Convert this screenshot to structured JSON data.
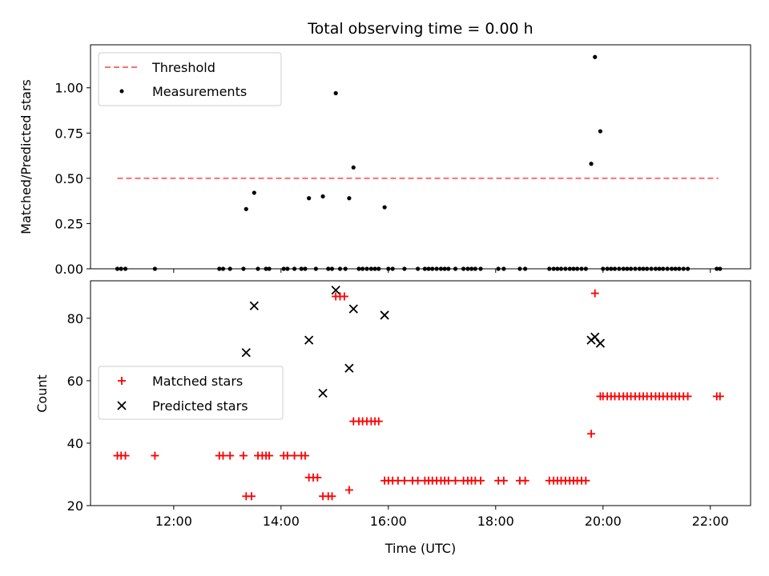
{
  "chart_data": [
    {
      "type": "scatter",
      "title": "Total observing time = 0.00 h",
      "ylabel": "Matched/Predicted stars",
      "ylim": [
        0,
        1.2375
      ],
      "yticks": [
        "0.00",
        "0.25",
        "0.50",
        "0.75",
        "1.00"
      ],
      "xlim": [
        10.45,
        22.75
      ],
      "legend": {
        "placement": "upper-left",
        "entries": [
          {
            "key": "threshold",
            "label": "Threshold"
          },
          {
            "key": "measurements",
            "label": "Measurements"
          }
        ]
      },
      "threshold": {
        "y": 0.5,
        "x_range": [
          10.95,
          22.15
        ],
        "color": "#ff7070"
      },
      "measurements": {
        "color": "#000000",
        "points": [
          [
            10.95,
            0
          ],
          [
            11.02,
            0
          ],
          [
            11.1,
            0
          ],
          [
            11.65,
            0
          ],
          [
            12.85,
            0
          ],
          [
            12.92,
            0
          ],
          [
            13.05,
            0
          ],
          [
            13.3,
            0
          ],
          [
            13.35,
            0.33
          ],
          [
            13.5,
            0.42
          ],
          [
            13.57,
            0
          ],
          [
            13.72,
            0
          ],
          [
            13.78,
            0
          ],
          [
            14.05,
            0
          ],
          [
            14.12,
            0
          ],
          [
            14.25,
            0
          ],
          [
            14.38,
            0
          ],
          [
            14.45,
            0
          ],
          [
            14.52,
            0.39
          ],
          [
            14.65,
            0
          ],
          [
            14.78,
            0.4
          ],
          [
            14.88,
            0
          ],
          [
            14.95,
            0
          ],
          [
            15.02,
            0.97
          ],
          [
            15.1,
            0
          ],
          [
            15.2,
            0
          ],
          [
            15.27,
            0.39
          ],
          [
            15.35,
            0.56
          ],
          [
            15.45,
            0
          ],
          [
            15.52,
            0
          ],
          [
            15.6,
            0
          ],
          [
            15.68,
            0
          ],
          [
            15.75,
            0
          ],
          [
            15.82,
            0
          ],
          [
            15.93,
            0.34
          ],
          [
            16.0,
            0
          ],
          [
            16.08,
            0
          ],
          [
            16.3,
            0
          ],
          [
            16.55,
            0
          ],
          [
            16.68,
            0
          ],
          [
            16.75,
            0
          ],
          [
            16.82,
            0
          ],
          [
            16.9,
            0
          ],
          [
            16.98,
            0
          ],
          [
            17.05,
            0
          ],
          [
            17.12,
            0
          ],
          [
            17.25,
            0
          ],
          [
            17.4,
            0
          ],
          [
            17.48,
            0
          ],
          [
            17.55,
            0
          ],
          [
            17.62,
            0
          ],
          [
            17.72,
            0
          ],
          [
            18.05,
            0
          ],
          [
            18.15,
            0
          ],
          [
            18.45,
            0
          ],
          [
            18.55,
            0
          ],
          [
            19.0,
            0
          ],
          [
            19.08,
            0
          ],
          [
            19.15,
            0
          ],
          [
            19.22,
            0
          ],
          [
            19.3,
            0
          ],
          [
            19.38,
            0
          ],
          [
            19.45,
            0
          ],
          [
            19.52,
            0
          ],
          [
            19.6,
            0
          ],
          [
            19.68,
            0
          ],
          [
            19.78,
            0.58
          ],
          [
            19.85,
            1.17
          ],
          [
            19.95,
            0.76
          ],
          [
            20.0,
            0
          ],
          [
            20.08,
            0
          ],
          [
            20.15,
            0
          ],
          [
            20.22,
            0
          ],
          [
            20.3,
            0
          ],
          [
            20.38,
            0
          ],
          [
            20.45,
            0
          ],
          [
            20.52,
            0
          ],
          [
            20.6,
            0
          ],
          [
            20.68,
            0
          ],
          [
            20.75,
            0
          ],
          [
            20.82,
            0
          ],
          [
            20.9,
            0
          ],
          [
            20.98,
            0
          ],
          [
            21.05,
            0
          ],
          [
            21.12,
            0
          ],
          [
            21.2,
            0
          ],
          [
            21.28,
            0
          ],
          [
            21.35,
            0
          ],
          [
            21.42,
            0
          ],
          [
            21.5,
            0
          ],
          [
            21.58,
            0
          ],
          [
            22.12,
            0
          ],
          [
            22.18,
            0
          ]
        ]
      }
    },
    {
      "type": "scatter",
      "ylabel": "Count",
      "xlabel": "Time (UTC)",
      "ylim": [
        20,
        92
      ],
      "yticks": [
        "20",
        "40",
        "60",
        "80"
      ],
      "xlim": [
        10.45,
        22.75
      ],
      "xticks": [
        {
          "value": 12,
          "label": "12:00"
        },
        {
          "value": 14,
          "label": "14:00"
        },
        {
          "value": 16,
          "label": "16:00"
        },
        {
          "value": 18,
          "label": "18:00"
        },
        {
          "value": 20,
          "label": "20:00"
        },
        {
          "value": 22,
          "label": "22:00"
        }
      ],
      "legend": {
        "placement": "center-left",
        "entries": [
          {
            "key": "matched",
            "label": "Matched stars"
          },
          {
            "key": "predicted",
            "label": "Predicted stars"
          }
        ]
      },
      "series": [
        {
          "key": "matched",
          "name": "Matched stars",
          "marker": "plus",
          "color": "#ff0000",
          "points": [
            [
              10.95,
              36
            ],
            [
              11.02,
              36
            ],
            [
              11.1,
              36
            ],
            [
              11.65,
              36
            ],
            [
              12.85,
              36
            ],
            [
              12.92,
              36
            ],
            [
              13.05,
              36
            ],
            [
              13.3,
              36
            ],
            [
              13.35,
              23
            ],
            [
              13.45,
              23
            ],
            [
              13.57,
              36
            ],
            [
              13.65,
              36
            ],
            [
              13.72,
              36
            ],
            [
              13.78,
              36
            ],
            [
              14.05,
              36
            ],
            [
              14.12,
              36
            ],
            [
              14.25,
              36
            ],
            [
              14.38,
              36
            ],
            [
              14.45,
              36
            ],
            [
              14.52,
              29
            ],
            [
              14.6,
              29
            ],
            [
              14.68,
              29
            ],
            [
              14.78,
              23
            ],
            [
              14.88,
              23
            ],
            [
              14.95,
              23
            ],
            [
              15.02,
              87
            ],
            [
              15.1,
              87
            ],
            [
              15.18,
              87
            ],
            [
              15.27,
              25
            ],
            [
              15.35,
              47
            ],
            [
              15.45,
              47
            ],
            [
              15.52,
              47
            ],
            [
              15.6,
              47
            ],
            [
              15.68,
              47
            ],
            [
              15.75,
              47
            ],
            [
              15.82,
              47
            ],
            [
              15.93,
              28
            ],
            [
              16.0,
              28
            ],
            [
              16.08,
              28
            ],
            [
              16.18,
              28
            ],
            [
              16.3,
              28
            ],
            [
              16.45,
              28
            ],
            [
              16.55,
              28
            ],
            [
              16.68,
              28
            ],
            [
              16.75,
              28
            ],
            [
              16.82,
              28
            ],
            [
              16.9,
              28
            ],
            [
              16.98,
              28
            ],
            [
              17.05,
              28
            ],
            [
              17.12,
              28
            ],
            [
              17.25,
              28
            ],
            [
              17.4,
              28
            ],
            [
              17.48,
              28
            ],
            [
              17.55,
              28
            ],
            [
              17.62,
              28
            ],
            [
              17.72,
              28
            ],
            [
              18.05,
              28
            ],
            [
              18.15,
              28
            ],
            [
              18.45,
              28
            ],
            [
              18.55,
              28
            ],
            [
              19.0,
              28
            ],
            [
              19.08,
              28
            ],
            [
              19.15,
              28
            ],
            [
              19.22,
              28
            ],
            [
              19.3,
              28
            ],
            [
              19.38,
              28
            ],
            [
              19.45,
              28
            ],
            [
              19.52,
              28
            ],
            [
              19.6,
              28
            ],
            [
              19.68,
              28
            ],
            [
              19.78,
              43
            ],
            [
              19.85,
              88
            ],
            [
              19.95,
              55
            ],
            [
              20.0,
              55
            ],
            [
              20.08,
              55
            ],
            [
              20.15,
              55
            ],
            [
              20.22,
              55
            ],
            [
              20.3,
              55
            ],
            [
              20.38,
              55
            ],
            [
              20.45,
              55
            ],
            [
              20.52,
              55
            ],
            [
              20.6,
              55
            ],
            [
              20.68,
              55
            ],
            [
              20.75,
              55
            ],
            [
              20.82,
              55
            ],
            [
              20.9,
              55
            ],
            [
              20.98,
              55
            ],
            [
              21.05,
              55
            ],
            [
              21.12,
              55
            ],
            [
              21.2,
              55
            ],
            [
              21.28,
              55
            ],
            [
              21.35,
              55
            ],
            [
              21.42,
              55
            ],
            [
              21.5,
              55
            ],
            [
              21.58,
              55
            ],
            [
              22.12,
              55
            ],
            [
              22.18,
              55
            ]
          ]
        },
        {
          "key": "predicted",
          "name": "Predicted stars",
          "marker": "x",
          "color": "#000000",
          "points": [
            [
              13.35,
              69
            ],
            [
              13.5,
              84
            ],
            [
              14.52,
              73
            ],
            [
              14.78,
              56
            ],
            [
              15.02,
              89
            ],
            [
              15.27,
              64
            ],
            [
              15.35,
              83
            ],
            [
              15.93,
              81
            ],
            [
              19.78,
              73
            ],
            [
              19.85,
              74
            ],
            [
              19.95,
              72
            ]
          ]
        }
      ]
    }
  ]
}
